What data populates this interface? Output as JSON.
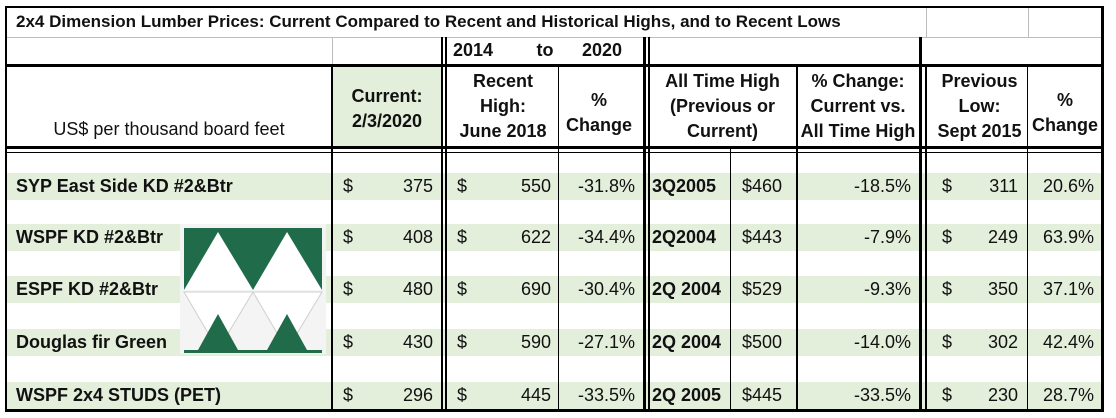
{
  "title": "2x4 Dimension Lumber Prices: Current Compared to Recent and Historical Highs, and to Recent Lows",
  "year_range": {
    "from": "2014",
    "to_word": "to",
    "to": "2020"
  },
  "columns": {
    "units": "US$ per thousand board feet",
    "current": [
      "Current:",
      "2/3/2020"
    ],
    "recent_high": [
      "Recent",
      "High:",
      "June 2018"
    ],
    "pct_change": [
      "%",
      "Change"
    ],
    "all_time_high": [
      "All Time High",
      "(Previous or",
      "Current)"
    ],
    "pct_change_ath": [
      "% Change:",
      "Current vs.",
      "All Time High"
    ],
    "previous_low": [
      "Previous",
      "Low:",
      "Sept 2015"
    ],
    "pct_change_low": [
      "%",
      "Change"
    ]
  },
  "currency_symbol": "$",
  "rows": [
    {
      "name": "SYP East Side KD #2&Btr",
      "current": "375",
      "recent_high": "550",
      "pct_change": "-31.8%",
      "ath_period": "3Q2005",
      "ath_price": "$460",
      "pct_vs_ath": "-18.5%",
      "low": "311",
      "pct_vs_low": "20.6%"
    },
    {
      "name": "WSPF KD #2&Btr",
      "current": "408",
      "recent_high": "622",
      "pct_change": "-34.4%",
      "ath_period": "2Q2004",
      "ath_price": "$443",
      "pct_vs_ath": "-7.9%",
      "low": "249",
      "pct_vs_low": "63.9%"
    },
    {
      "name": "ESPF KD #2&Btr",
      "current": "480",
      "recent_high": "690",
      "pct_change": "-30.4%",
      "ath_period": "2Q 2004",
      "ath_price": "$529",
      "pct_vs_ath": "-9.3%",
      "low": "350",
      "pct_vs_low": "37.1%"
    },
    {
      "name": "Douglas fir Green",
      "current": "430",
      "recent_high": "590",
      "pct_change": "-27.1%",
      "ath_period": "2Q 2004",
      "ath_price": "$500",
      "pct_vs_ath": "-14.0%",
      "low": "302",
      "pct_vs_low": "42.4%"
    },
    {
      "name": "WSPF 2x4 STUDS (PET)",
      "current": "296",
      "recent_high": "445",
      "pct_change": "-33.5%",
      "ath_period": "2Q 2005",
      "ath_price": "$445",
      "pct_vs_ath": "-33.5%",
      "low": "230",
      "pct_vs_low": "28.7%"
    }
  ],
  "colors": {
    "band": "#e3eedb",
    "logo_green": "#1f6b4a",
    "border": "#000000"
  },
  "logo_icon": "triangles-logo-icon"
}
